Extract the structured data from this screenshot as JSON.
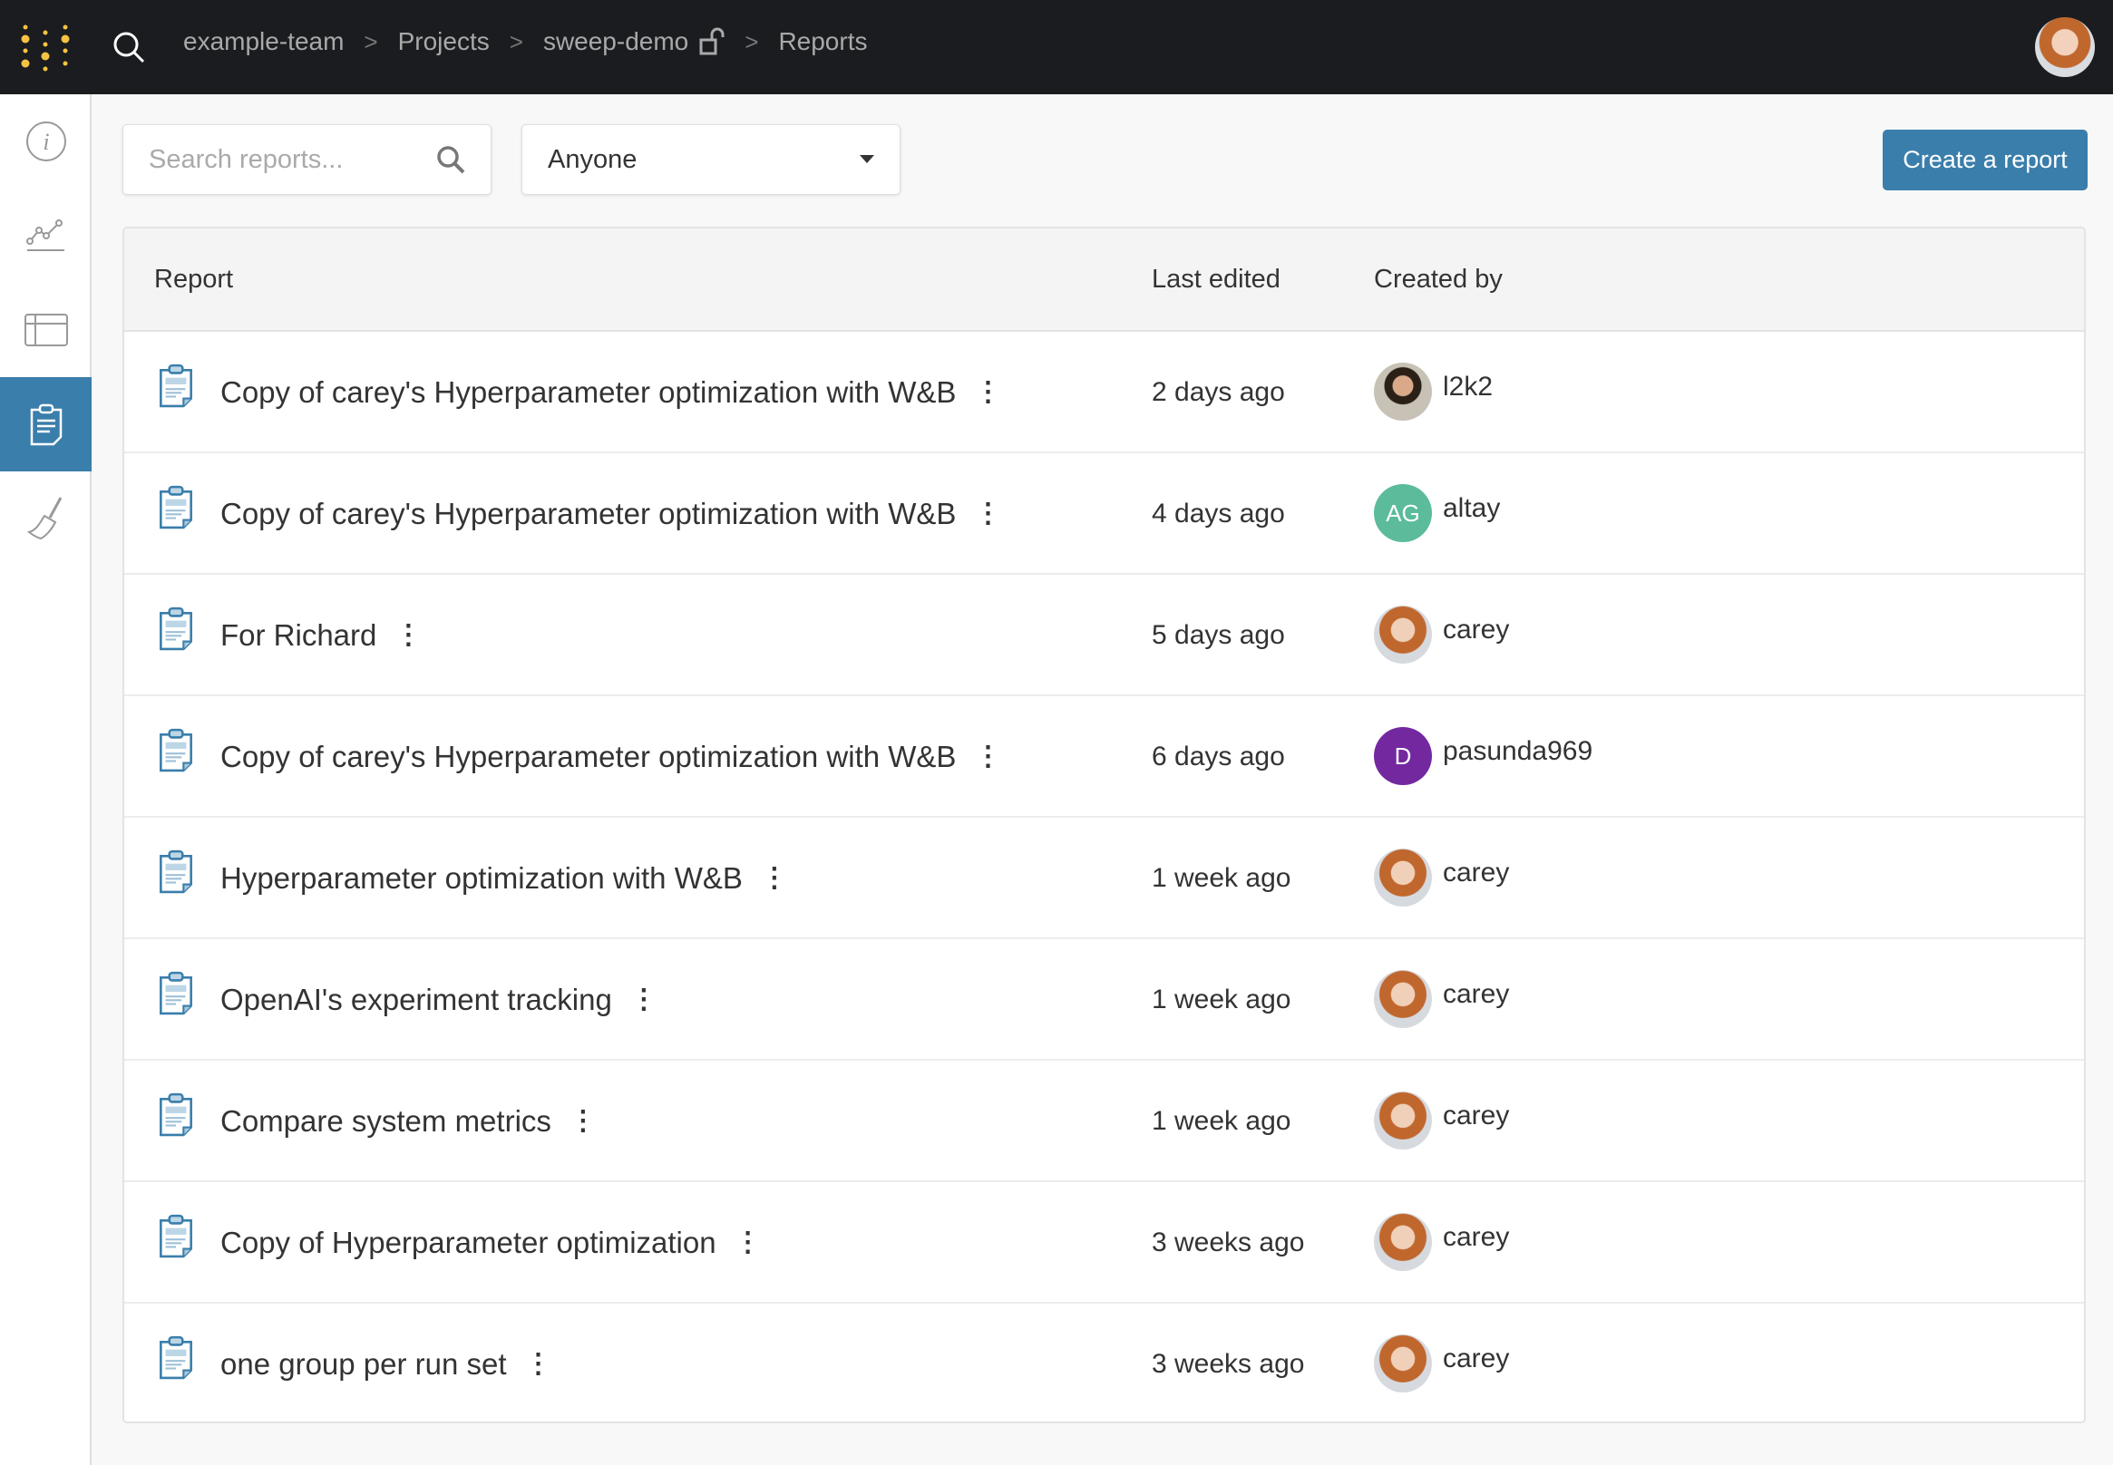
{
  "topbar": {
    "breadcrumbs": [
      "example-team",
      "Projects",
      "sweep-demo",
      "Reports"
    ],
    "separator": ">"
  },
  "sidebar": {
    "items": [
      {
        "icon": "info-icon"
      },
      {
        "icon": "chart-icon"
      },
      {
        "icon": "table-icon"
      },
      {
        "icon": "report-icon",
        "active": true
      },
      {
        "icon": "broom-icon"
      }
    ]
  },
  "toolbar": {
    "search_placeholder": "Search reports...",
    "filter_value": "Anyone",
    "create_label": "Create a report"
  },
  "table": {
    "headers": {
      "report": "Report",
      "last_edited": "Last edited",
      "created_by": "Created by"
    },
    "rows": [
      {
        "title": "Copy of carey's Hyperparameter optimization with W&B",
        "edited": "2 days ago",
        "user": "l2k2",
        "avatar": "photo-man"
      },
      {
        "title": "Copy of carey's Hyperparameter optimization with W&B",
        "edited": "4 days ago",
        "user": "altay",
        "initials": "AG",
        "color": "#5bbb9a"
      },
      {
        "title": "For Richard",
        "edited": "5 days ago",
        "user": "carey",
        "avatar": "photo-woman"
      },
      {
        "title": "Copy of carey's Hyperparameter optimization with W&B",
        "edited": "6 days ago",
        "user": "pasunda969",
        "initials": "D",
        "color": "#7328a0"
      },
      {
        "title": "Hyperparameter optimization with W&B",
        "edited": "1 week ago",
        "user": "carey",
        "avatar": "photo-woman"
      },
      {
        "title": "OpenAI's experiment tracking",
        "edited": "1 week ago",
        "user": "carey",
        "avatar": "photo-woman"
      },
      {
        "title": "Compare system metrics",
        "edited": "1 week ago",
        "user": "carey",
        "avatar": "photo-woman"
      },
      {
        "title": "Copy of Hyperparameter optimization",
        "edited": "3 weeks ago",
        "user": "carey",
        "avatar": "photo-woman"
      },
      {
        "title": "one group per run set",
        "edited": "3 weeks ago",
        "user": "carey",
        "avatar": "photo-woman"
      }
    ]
  },
  "colors": {
    "accent": "#3a7eab",
    "topbar": "#1b1c20",
    "logo": "#f5c343"
  }
}
